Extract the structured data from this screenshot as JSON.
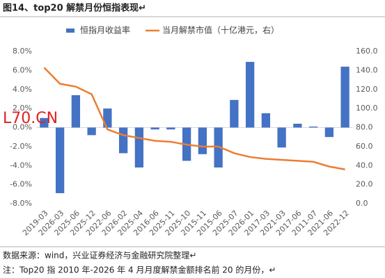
{
  "chart_data": {
    "type": "bar",
    "title": "图14、top20 解禁月份恒指表现↵",
    "watermark_label": "L70.CN",
    "categories": [
      "2019-03",
      "2026-03",
      "2025-06",
      "2025-12",
      "2022-06",
      "2026-02",
      "2025-04",
      "2016-06",
      "2025-11",
      "2025-10",
      "2015-11",
      "2015-06",
      "2025-07",
      "2026-01",
      "2017-03",
      "2021-03",
      "2017-06",
      "2011-07",
      "2021-06",
      "2022-12"
    ],
    "series": [
      {
        "name": "恒指月收益率",
        "type": "bar",
        "color": "#4472c4",
        "values": [
          1.0,
          -6.9,
          3.4,
          -0.8,
          2.0,
          -2.7,
          -4.2,
          -0.2,
          -0.2,
          -3.5,
          -2.8,
          -4.2,
          2.9,
          6.9,
          1.5,
          -2.1,
          0.4,
          0.1,
          -1.0,
          6.4
        ]
      },
      {
        "name": "当月解禁市值（十亿港元，右）",
        "type": "line",
        "axis": "y2",
        "color": "#ed7d31",
        "values": [
          143,
          126,
          123,
          115,
          78,
          72,
          69,
          66,
          65,
          62,
          60,
          60,
          53,
          49,
          47,
          46,
          45,
          44,
          39,
          36
        ]
      }
    ],
    "ylim": [
      -8,
      8
    ],
    "yticks": [
      {
        "value": 8,
        "label": "8.0%"
      },
      {
        "value": 6,
        "label": "6.0%"
      },
      {
        "value": 4,
        "label": "4.0%"
      },
      {
        "value": 2,
        "label": "2.0%"
      },
      {
        "value": 0,
        "label": "0.0%"
      },
      {
        "value": -2,
        "label": "-2.0%"
      },
      {
        "value": -4,
        "label": "-4.0%"
      },
      {
        "value": -6,
        "label": "-6.0%"
      },
      {
        "value": -8,
        "label": "-8.0%"
      }
    ],
    "y2lim": [
      0,
      160
    ],
    "y2ticks": [
      {
        "value": 160,
        "label": "160.0"
      },
      {
        "value": 140,
        "label": "140.0"
      },
      {
        "value": 120,
        "label": "120.0"
      },
      {
        "value": 100,
        "label": "100.0"
      },
      {
        "value": 80,
        "label": "80.0"
      },
      {
        "value": 60,
        "label": "60.0"
      },
      {
        "value": 40,
        "label": "40.0"
      },
      {
        "value": 20,
        "label": "20.0"
      },
      {
        "value": 0,
        "label": "0.0"
      }
    ],
    "notes": [
      "数据来源：wind，兴业证券经济与金融研究院整理↵",
      "注：Top20 指 2010 年-2026 年 4 月月度解禁金额排名前 20 的月份，↵"
    ]
  }
}
